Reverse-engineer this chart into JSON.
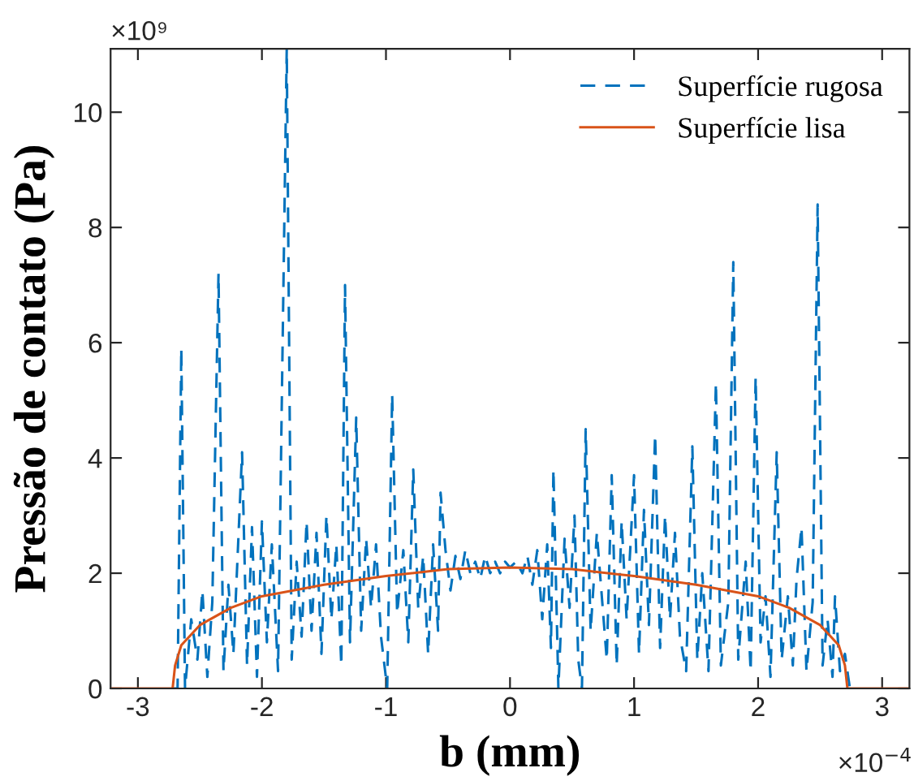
{
  "chart_data": {
    "type": "line",
    "xlabel": "b (mm)",
    "ylabel": "Pressão de contato (Pa)",
    "xlim": [
      -3.22,
      3.22
    ],
    "xticks": [
      -3,
      -2,
      -1,
      0,
      1,
      2,
      3
    ],
    "ylim": [
      0,
      11.1
    ],
    "yticks": [
      0,
      2,
      4,
      6,
      8,
      10
    ],
    "grid": false,
    "legend": "top right",
    "marker": "none",
    "annotations": [
      "×10⁹",
      "×10$^{−4}$"
    ],
    "series": [
      {
        "name": "Superfície rugosa",
        "color": "#0072bd",
        "line_style": "dashed",
        "x": [
          -2.72,
          -2.68,
          -2.65,
          -2.62,
          -2.57,
          -2.52,
          -2.48,
          -2.44,
          -2.4,
          -2.35,
          -2.31,
          -2.27,
          -2.23,
          -2.16,
          -2.12,
          -2.08,
          -2.04,
          -2.0,
          -1.96,
          -1.92,
          -1.87,
          -1.8,
          -1.76,
          -1.72,
          -1.68,
          -1.64,
          -1.6,
          -1.56,
          -1.52,
          -1.48,
          -1.44,
          -1.4,
          -1.36,
          -1.33,
          -1.29,
          -1.24,
          -1.2,
          -1.16,
          -1.12,
          -1.08,
          -1.04,
          -0.99,
          -0.95,
          -0.91,
          -0.86,
          -0.82,
          -0.78,
          -0.74,
          -0.7,
          -0.66,
          -0.62,
          -0.58,
          -0.56,
          -0.52,
          -0.48,
          -0.44,
          -0.4,
          -0.36,
          -0.32,
          -0.28,
          -0.24,
          -0.2,
          -0.16,
          -0.12,
          -0.08,
          -0.04,
          0.0,
          0.05,
          0.1,
          0.14,
          0.18,
          0.22,
          0.26,
          0.3,
          0.33,
          0.35,
          0.39,
          0.44,
          0.48,
          0.52,
          0.55,
          0.58,
          0.61,
          0.65,
          0.7,
          0.74,
          0.78,
          0.82,
          0.86,
          0.9,
          0.94,
          1.0,
          1.04,
          1.08,
          1.12,
          1.17,
          1.21,
          1.25,
          1.29,
          1.33,
          1.37,
          1.42,
          1.47,
          1.51,
          1.55,
          1.6,
          1.66,
          1.7,
          1.76,
          1.8,
          1.84,
          1.9,
          1.94,
          1.98,
          2.02,
          2.06,
          2.1,
          2.15,
          2.19,
          2.24,
          2.28,
          2.31,
          2.35,
          2.39,
          2.44,
          2.48,
          2.52,
          2.56,
          2.6,
          2.62,
          2.66,
          2.7,
          2.74
        ],
        "values": [
          0,
          0,
          5.9,
          0,
          1.2,
          0.5,
          1.7,
          0.2,
          1.5,
          7.2,
          0.3,
          1.8,
          0.6,
          4.1,
          0.4,
          2.8,
          0.2,
          2.9,
          0.8,
          2.5,
          0.3,
          11.1,
          0.5,
          2.2,
          0.9,
          2.9,
          1.0,
          2.7,
          0.6,
          3.0,
          1.2,
          2.5,
          0.4,
          7.0,
          0.8,
          4.7,
          1.0,
          2.6,
          1.4,
          2.5,
          0.9,
          0,
          5.1,
          1.3,
          2.4,
          0.8,
          3.8,
          1.4,
          2.3,
          0.6,
          2.5,
          1.0,
          3.4,
          2.4,
          1.7,
          2.3,
          1.9,
          2.4,
          2.0,
          2.2,
          1.9,
          2.3,
          2.0,
          2.2,
          2.0,
          2.2,
          2.1,
          2.2,
          2.0,
          2.3,
          1.8,
          2.4,
          1.2,
          2.5,
          0.7,
          3.8,
          0,
          2.6,
          1.4,
          3.0,
          0.5,
          0,
          4.5,
          1.0,
          2.7,
          1.6,
          0.5,
          3.7,
          0.4,
          2.9,
          1.2,
          3.7,
          0.6,
          3.1,
          1.1,
          4.4,
          0.7,
          3.0,
          1.2,
          2.7,
          0.9,
          0.3,
          4.2,
          0.5,
          2.0,
          0.3,
          5.3,
          0.4,
          1.5,
          7.4,
          0.5,
          2.2,
          0.3,
          5.4,
          0.8,
          1.6,
          0.2,
          4.1,
          0.5,
          1.6,
          0.4,
          1.9,
          2.8,
          0.3,
          1.5,
          8.4,
          0.4,
          1.2,
          0.2,
          1.6,
          0.3,
          0.6,
          0
        ]
      },
      {
        "name": "Superfície lisa",
        "color": "#d95319",
        "line_style": "solid",
        "x": [
          -3.22,
          -2.72,
          -2.7,
          -2.65,
          -2.5,
          -2.25,
          -2.0,
          -1.5,
          -1.0,
          -0.5,
          0,
          0.5,
          1.0,
          1.5,
          2.0,
          2.25,
          2.5,
          2.65,
          2.7,
          2.72,
          3.22
        ],
        "values": [
          0,
          0,
          0.4,
          0.75,
          1.1,
          1.4,
          1.6,
          1.8,
          1.95,
          2.07,
          2.1,
          2.07,
          1.95,
          1.8,
          1.6,
          1.4,
          1.1,
          0.75,
          0.4,
          0,
          0
        ]
      }
    ]
  }
}
